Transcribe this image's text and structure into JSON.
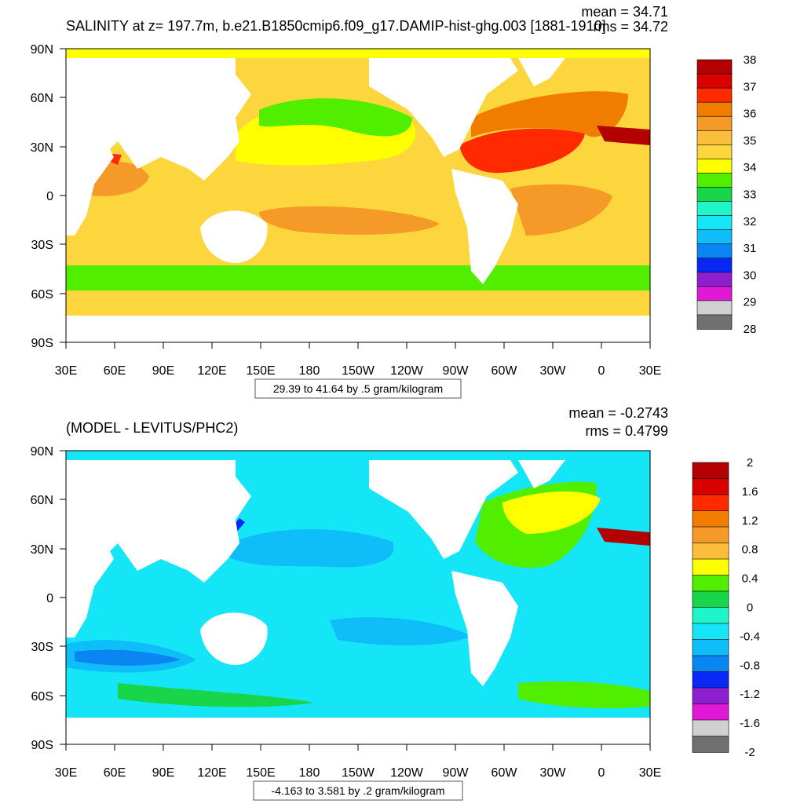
{
  "panels": [
    {
      "id": "salinity",
      "title": "SALINITY at z= 197.7m, b.e21.B1850cmip6.f09_g17.DAMIP-hist-ghg.003 [1881-1910]",
      "stats": {
        "mean": "mean = 34.71",
        "rms": "rms = 34.72"
      },
      "range_label": "29.39 to 41.64 by .5 gram/kilogram",
      "x_ticks": [
        "30E",
        "60E",
        "90E",
        "120E",
        "150E",
        "180",
        "150W",
        "120W",
        "90W",
        "60W",
        "30W",
        "0",
        "30E"
      ],
      "y_ticks": [
        "90N",
        "60N",
        "30N",
        "0",
        "30S",
        "60S",
        "90S"
      ],
      "colorbar": {
        "colors": [
          "#b30000",
          "#d90000",
          "#ff2a00",
          "#f07d00",
          "#f59a28",
          "#fbbe3a",
          "#fcd63c",
          "#ffff00",
          "#52ee00",
          "#19d54a",
          "#1ff5c8",
          "#14e6f7",
          "#0fbef9",
          "#0a86f2",
          "#0a28f5",
          "#8d1fcf",
          "#e119d7",
          "#d0d0d0",
          "#707070"
        ],
        "labels": [
          "38",
          "37",
          "36",
          "35",
          "34",
          "33",
          "32",
          "31",
          "30",
          "29",
          "28"
        ]
      }
    },
    {
      "id": "difference",
      "title": "(MODEL - LEVITUS/PHC2)",
      "stats": {
        "mean": "mean = -0.2743",
        "rms": "rms = 0.4799"
      },
      "range_label": "-4.163 to 3.581 by .2 gram/kilogram",
      "x_ticks": [
        "30E",
        "60E",
        "90E",
        "120E",
        "150E",
        "180",
        "150W",
        "120W",
        "90W",
        "60W",
        "30W",
        "0",
        "30E"
      ],
      "y_ticks": [
        "90N",
        "60N",
        "30N",
        "0",
        "30S",
        "60S",
        "90S"
      ],
      "colorbar": {
        "colors": [
          "#b30000",
          "#d90000",
          "#ff2a00",
          "#f07d00",
          "#f59a28",
          "#fbbe3a",
          "#ffff00",
          "#52ee00",
          "#19d54a",
          "#1ff5c8",
          "#14e6f7",
          "#0fbef9",
          "#0a86f2",
          "#0a28f5",
          "#8d1fcf",
          "#e119d7",
          "#d0d0d0",
          "#707070"
        ],
        "labels": [
          "2",
          "1.6",
          "1.2",
          "0.8",
          "0.4",
          "0",
          "-0.4",
          "-0.8",
          "-1.2",
          "-1.6",
          "-2"
        ]
      }
    }
  ],
  "colors": {
    "ocean_salinity": "#fcd63c",
    "ocean_difference": "#14e6f7",
    "land": "#ffffff"
  }
}
